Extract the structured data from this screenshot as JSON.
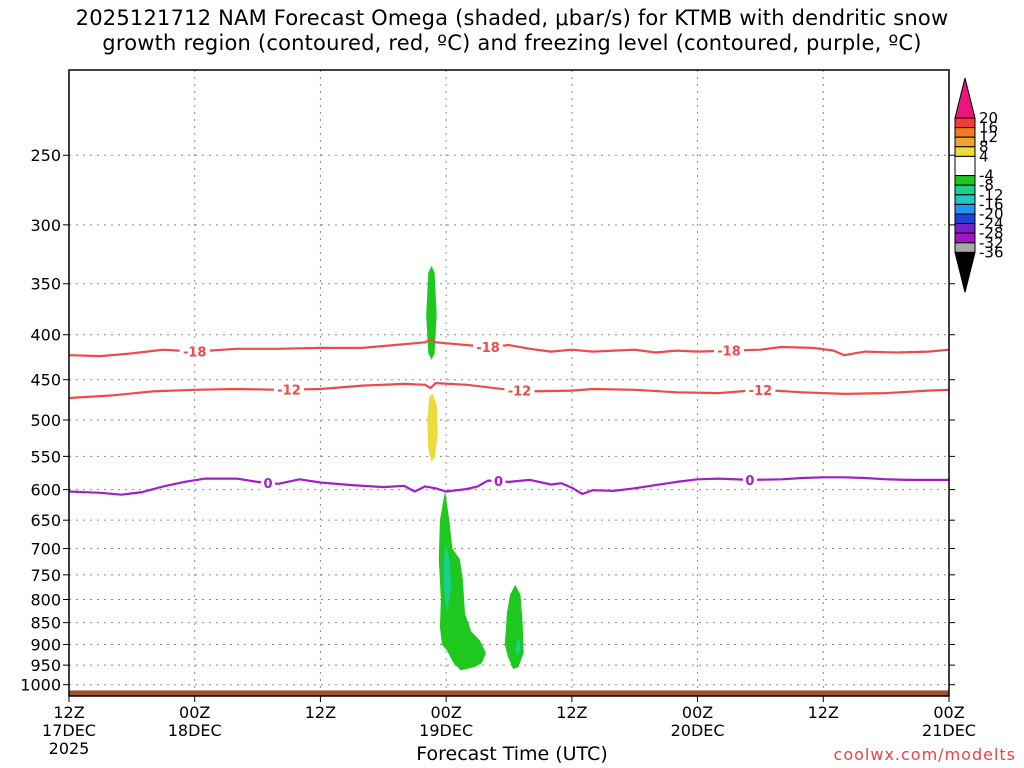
{
  "title_line1": "2025121712 NAM Forecast Omega (shaded, μbar/s) for KTMB with dendritic snow",
  "title_line2": "growth region (contoured, red, ºC) and freezing level (contoured, purple, ºC)",
  "credit": "coolwx.com/modelts",
  "chart_data": {
    "type": "heatmap",
    "xlabel": "Forecast Time (UTC)",
    "x_range_hours": [
      0,
      84
    ],
    "x_ticks": [
      {
        "hour": 0,
        "label1": "12Z",
        "label2": "17DEC",
        "label3": "2025"
      },
      {
        "hour": 12,
        "label1": "00Z",
        "label2": "18DEC",
        "label3": ""
      },
      {
        "hour": 24,
        "label1": "12Z",
        "label2": "",
        "label3": ""
      },
      {
        "hour": 36,
        "label1": "00Z",
        "label2": "19DEC",
        "label3": ""
      },
      {
        "hour": 48,
        "label1": "12Z",
        "label2": "",
        "label3": ""
      },
      {
        "hour": 60,
        "label1": "00Z",
        "label2": "20DEC",
        "label3": ""
      },
      {
        "hour": 72,
        "label1": "12Z",
        "label2": "",
        "label3": ""
      },
      {
        "hour": 84,
        "label1": "00Z",
        "label2": "21DEC",
        "label3": ""
      }
    ],
    "y_axis": "pressure (mb), log scale, reversed",
    "y_range_mb": [
      1030,
      200
    ],
    "y_ticks": [
      "250",
      "300",
      "350",
      "400",
      "450",
      "500",
      "550",
      "600",
      "650",
      "700",
      "750",
      "800",
      "850",
      "900",
      "950",
      "1000"
    ],
    "grid": "dotted",
    "colorbar": {
      "levels": [
        "20",
        "16",
        "12",
        "8",
        "4",
        "-4",
        "-8",
        "-12",
        "-16",
        "-20",
        "-24",
        "-28",
        "-32",
        "-36"
      ],
      "top_arrow_color": "#e8177c",
      "bottom_arrow_color": "#000000",
      "bins": [
        {
          "from": 16,
          "to": 20,
          "color": "#f23b3b"
        },
        {
          "from": 12,
          "to": 16,
          "color": "#f07b21"
        },
        {
          "from": 8,
          "to": 12,
          "color": "#f0a530"
        },
        {
          "from": 4,
          "to": 8,
          "color": "#e8dd3a"
        },
        {
          "from": -4,
          "to": 4,
          "color": "#ffffff"
        },
        {
          "from": -8,
          "to": -4,
          "color": "#1ec81e"
        },
        {
          "from": -12,
          "to": -8,
          "color": "#1bcf91"
        },
        {
          "from": -16,
          "to": -12,
          "color": "#1fc9c9"
        },
        {
          "from": -20,
          "to": -16,
          "color": "#2196f2"
        },
        {
          "from": -24,
          "to": -20,
          "color": "#2040d8"
        },
        {
          "from": -28,
          "to": -24,
          "color": "#7a1fcf"
        },
        {
          "from": -32,
          "to": -28,
          "color": "#a416c4"
        },
        {
          "from": -36,
          "to": -32,
          "color": "#a8a8a8"
        }
      ]
    },
    "contours": [
      {
        "label": "-18",
        "color": "#ee4a4a",
        "label_hours": [
          12,
          40,
          63
        ],
        "points": [
          [
            0,
            422
          ],
          [
            3,
            423
          ],
          [
            6,
            420
          ],
          [
            9,
            416
          ],
          [
            12,
            418
          ],
          [
            16,
            415
          ],
          [
            20,
            415
          ],
          [
            24,
            414
          ],
          [
            28,
            414
          ],
          [
            31,
            411
          ],
          [
            34,
            408
          ],
          [
            34.5,
            405
          ],
          [
            35,
            408
          ],
          [
            38,
            411
          ],
          [
            40,
            413
          ],
          [
            42,
            411
          ],
          [
            44,
            415
          ],
          [
            46,
            418
          ],
          [
            48,
            416
          ],
          [
            50,
            418
          ],
          [
            52,
            417
          ],
          [
            54,
            416
          ],
          [
            56,
            419
          ],
          [
            58,
            417
          ],
          [
            60,
            418
          ],
          [
            63,
            417
          ],
          [
            66,
            416
          ],
          [
            68,
            413
          ],
          [
            71,
            414
          ],
          [
            73,
            417
          ],
          [
            74,
            422
          ],
          [
            76,
            418
          ],
          [
            79,
            419
          ],
          [
            82,
            418
          ],
          [
            84,
            416
          ]
        ]
      },
      {
        "label": "-12",
        "color": "#ee4a4a",
        "label_hours": [
          21,
          43,
          66
        ],
        "points": [
          [
            0,
            472
          ],
          [
            4,
            469
          ],
          [
            8,
            464
          ],
          [
            12,
            462
          ],
          [
            16,
            461
          ],
          [
            20,
            462
          ],
          [
            24,
            461
          ],
          [
            28,
            457
          ],
          [
            32,
            455
          ],
          [
            34,
            456
          ],
          [
            34.5,
            460
          ],
          [
            35,
            454
          ],
          [
            38,
            456
          ],
          [
            40,
            459
          ],
          [
            42,
            462
          ],
          [
            44,
            464
          ],
          [
            48,
            463
          ],
          [
            50,
            461
          ],
          [
            54,
            462
          ],
          [
            58,
            465
          ],
          [
            62,
            466
          ],
          [
            66,
            462
          ],
          [
            70,
            465
          ],
          [
            74,
            467
          ],
          [
            78,
            466
          ],
          [
            82,
            463
          ],
          [
            84,
            462
          ]
        ]
      },
      {
        "label": "0",
        "color": "#a020c8",
        "label_hours": [
          19,
          41,
          65
        ],
        "points": [
          [
            0,
            603
          ],
          [
            3,
            605
          ],
          [
            5,
            608
          ],
          [
            7,
            604
          ],
          [
            9,
            595
          ],
          [
            11,
            588
          ],
          [
            13,
            583
          ],
          [
            16,
            583
          ],
          [
            18,
            588
          ],
          [
            20,
            591
          ],
          [
            22,
            584
          ],
          [
            24,
            589
          ],
          [
            27,
            593
          ],
          [
            30,
            596
          ],
          [
            32,
            594
          ],
          [
            33,
            603
          ],
          [
            34,
            595
          ],
          [
            35,
            598
          ],
          [
            36,
            603
          ],
          [
            38,
            599
          ],
          [
            39,
            595
          ],
          [
            40,
            586
          ],
          [
            42,
            588
          ],
          [
            44,
            585
          ],
          [
            46,
            592
          ],
          [
            47,
            590
          ],
          [
            48,
            597
          ],
          [
            49,
            607
          ],
          [
            50,
            601
          ],
          [
            52,
            602
          ],
          [
            54,
            598
          ],
          [
            56,
            593
          ],
          [
            58,
            588
          ],
          [
            60,
            584
          ],
          [
            62,
            583
          ],
          [
            65,
            585
          ],
          [
            68,
            584
          ],
          [
            70,
            582
          ],
          [
            72,
            581
          ],
          [
            74,
            581
          ],
          [
            76,
            582
          ],
          [
            78,
            584
          ],
          [
            80,
            585
          ],
          [
            84,
            585
          ]
        ]
      }
    ],
    "omega_regions": [
      {
        "value_range": "-8 to -4",
        "color": "#1ec81e",
        "polygon": [
          [
            34.3,
            340
          ],
          [
            34.6,
            334
          ],
          [
            34.9,
            340
          ],
          [
            35.1,
            380
          ],
          [
            34.9,
            420
          ],
          [
            34.6,
            427
          ],
          [
            34.3,
            420
          ],
          [
            34.1,
            380
          ]
        ]
      },
      {
        "value_range": "4 to 8",
        "color": "#e8dd3a",
        "polygon": [
          [
            34.4,
            470
          ],
          [
            34.7,
            467
          ],
          [
            35.1,
            480
          ],
          [
            35.2,
            520
          ],
          [
            34.9,
            552
          ],
          [
            34.6,
            558
          ],
          [
            34.3,
            540
          ],
          [
            34.2,
            500
          ]
        ]
      },
      {
        "value_range": "-8 to -4",
        "color": "#1ec81e",
        "polygon": [
          [
            35.4,
            650
          ],
          [
            35.9,
            602
          ],
          [
            36.3,
            650
          ],
          [
            36.6,
            700
          ],
          [
            37.3,
            720
          ],
          [
            37.6,
            760
          ],
          [
            37.8,
            830
          ],
          [
            38.4,
            870
          ],
          [
            39.2,
            890
          ],
          [
            39.8,
            920
          ],
          [
            39.4,
            945
          ],
          [
            38.7,
            955
          ],
          [
            37.4,
            963
          ],
          [
            36.7,
            945
          ],
          [
            36.1,
            915
          ],
          [
            35.6,
            900
          ],
          [
            35.4,
            860
          ],
          [
            35.5,
            800
          ],
          [
            35.3,
            720
          ]
        ]
      },
      {
        "value_range": "-12 to -8",
        "color": "#1bcf91",
        "polygon": [
          [
            35.8,
            720
          ],
          [
            36.0,
            690
          ],
          [
            36.3,
            720
          ],
          [
            36.5,
            770
          ],
          [
            36.1,
            830
          ],
          [
            35.8,
            780
          ]
        ]
      },
      {
        "value_range": "-8 to -4",
        "color": "#1ec81e",
        "polygon": [
          [
            42.1,
            790
          ],
          [
            42.6,
            770
          ],
          [
            43.1,
            790
          ],
          [
            43.3,
            850
          ],
          [
            43.4,
            920
          ],
          [
            42.9,
            955
          ],
          [
            42.4,
            960
          ],
          [
            41.9,
            930
          ],
          [
            41.6,
            900
          ],
          [
            41.8,
            830
          ]
        ]
      },
      {
        "value_range": "-12 to -8",
        "color": "#1bcf91",
        "polygon": [
          [
            42.7,
            900
          ],
          [
            42.9,
            885
          ],
          [
            43.1,
            900
          ],
          [
            43.0,
            920
          ],
          [
            42.8,
            925
          ],
          [
            42.6,
            915
          ]
        ]
      }
    ],
    "surface": {
      "color": "#a0522d",
      "top_mb": 1015
    }
  }
}
